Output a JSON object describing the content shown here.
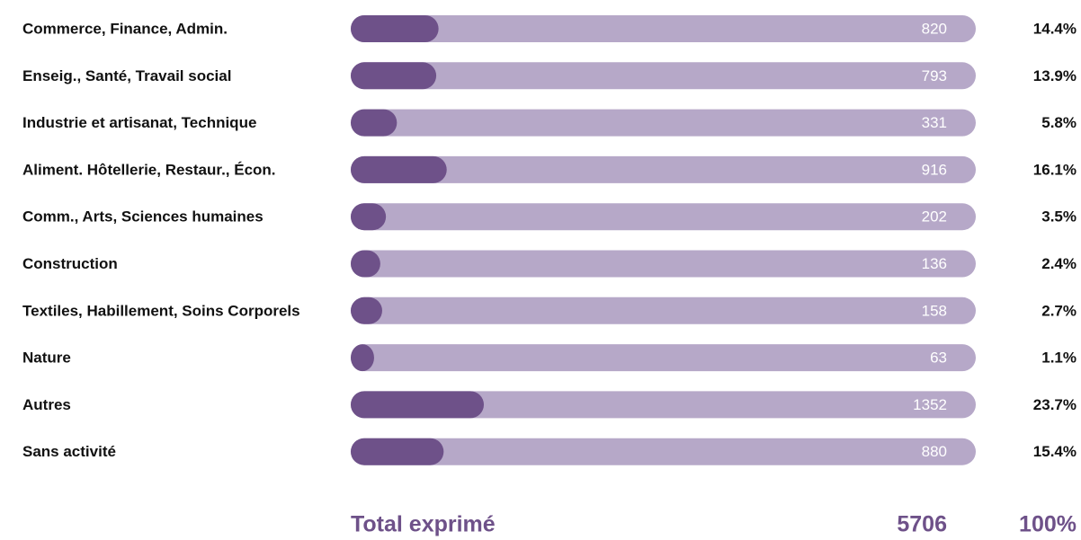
{
  "chart_data": {
    "type": "bar",
    "categories": [
      "Commerce, Finance, Admin.",
      "Enseig., Santé, Travail social",
      "Industrie et artisanat, Technique",
      "Aliment. Hôtellerie, Restaur., Écon.",
      "Comm., Arts, Sciences humaines",
      "Construction",
      "Textiles, Habillement, Soins Corporels",
      "Nature",
      "Autres",
      "Sans activité"
    ],
    "values": [
      820,
      793,
      331,
      916,
      202,
      136,
      158,
      63,
      1352,
      880
    ],
    "shares": [
      14.4,
      13.9,
      5.8,
      16.1,
      3.5,
      2.4,
      2.7,
      1.1,
      23.7,
      15.4
    ],
    "share_labels": [
      "14.4%",
      "13.9%",
      "5.8%",
      "16.1%",
      "3.5%",
      "2.4%",
      "2.7%",
      "1.1%",
      "23.7%",
      "15.4%"
    ],
    "color": "#6e5189",
    "track_color": "#b6a8c8",
    "total_label": "Total exprimé",
    "total": 5706,
    "total_share": 100,
    "total_share_label": "100%"
  }
}
